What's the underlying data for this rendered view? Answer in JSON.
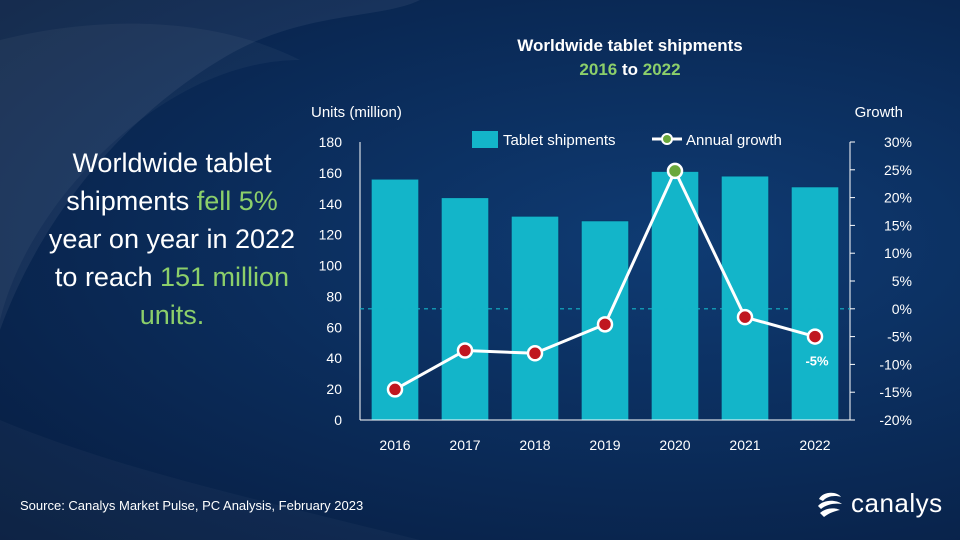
{
  "headline": {
    "part1": "Worldwide tablet shipments ",
    "highlight1": "fell 5%",
    "part2": " year on year in 2022 to reach ",
    "highlight2": "151 million units."
  },
  "title": {
    "line1": "Worldwide tablet shipments",
    "year_start": "2016",
    "year_joiner": " to ",
    "year_end": "2022"
  },
  "source": "Source: Canalys Market Pulse, PC Analysis, February 2023",
  "logo": {
    "text": "canalys",
    "icon": "canalys-logo-icon"
  },
  "colors": {
    "bar": "#13b5c9",
    "line": "#ffffff",
    "marker_red": "#c0161f",
    "marker_green": "#6aa83c",
    "text_green": "#8ccf6a"
  },
  "chart_data": {
    "type": "bar",
    "categories": [
      "2016",
      "2017",
      "2018",
      "2019",
      "2020",
      "2021",
      "2022"
    ],
    "series": [
      {
        "name": "Tablet shipments",
        "type": "bar",
        "axis": "left",
        "values": [
          156,
          144,
          132,
          129,
          161,
          158,
          151
        ]
      },
      {
        "name": "Annual growth",
        "type": "line",
        "axis": "right",
        "unit": "%",
        "values": [
          -14.5,
          -7.5,
          -8,
          -2.8,
          24.8,
          -1.5,
          -5
        ]
      }
    ],
    "ylabel": "Units (million)",
    "y2label": "Growth",
    "ylim": [
      0,
      180
    ],
    "yticks": [
      "0",
      "20",
      "40",
      "60",
      "80",
      "100",
      "120",
      "140",
      "160",
      "180"
    ],
    "y2lim": [
      -20,
      30
    ],
    "y2ticks": [
      "-20%",
      "-15%",
      "-10%",
      "-5%",
      "0%",
      "5%",
      "10%",
      "15%",
      "20%",
      "25%",
      "30%"
    ],
    "annotations": [
      {
        "category": "2022",
        "series": "Annual growth",
        "text": "-5%"
      }
    ],
    "legend": "top",
    "zero_growth_line": "dashed",
    "grid": false
  }
}
